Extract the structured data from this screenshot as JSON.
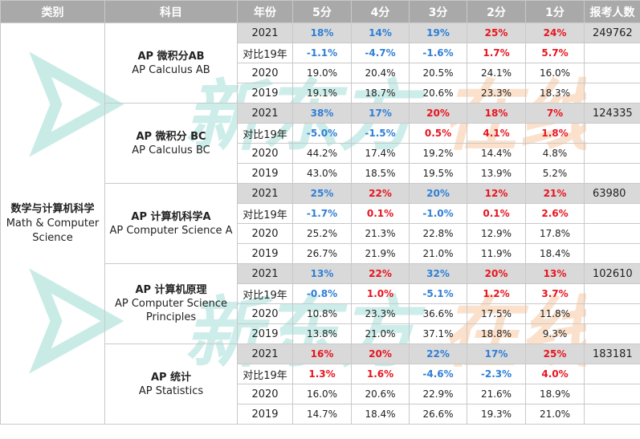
{
  "headers": [
    "类别",
    "科目",
    "年份",
    "5分",
    "4分",
    "3分",
    "2分",
    "1分",
    "报考人数"
  ],
  "category": {
    "zh": "数学与计算机科学",
    "en": "Math & Computer Science"
  },
  "subjects": [
    {
      "zh": "AP 微积分AB",
      "en": "AP Calculus AB",
      "rows": [
        {
          "year": "2021",
          "vals": [
            "18%",
            "14%",
            "19%",
            "25%",
            "24%"
          ],
          "colors": [
            "blue",
            "blue",
            "blue",
            "red",
            "red"
          ],
          "count": "249762"
        },
        {
          "year": "对比19年",
          "vals": [
            "-1.1%",
            "-4.7%",
            "-1.6%",
            "1.7%",
            "5.7%"
          ],
          "colors": [
            "blue",
            "blue",
            "blue",
            "red",
            "red"
          ],
          "count": ""
        },
        {
          "year": "2020",
          "vals": [
            "19.0%",
            "20.4%",
            "20.5%",
            "24.1%",
            "16.0%"
          ],
          "colors": [
            "",
            "",
            "",
            "",
            ""
          ],
          "count": ""
        },
        {
          "year": "2019",
          "vals": [
            "19.1%",
            "18.7%",
            "20.6%",
            "23.3%",
            "18.3%"
          ],
          "colors": [
            "",
            "",
            "",
            "",
            ""
          ],
          "count": ""
        }
      ]
    },
    {
      "zh": "AP 微积分 BC",
      "en": "AP Calculus BC",
      "rows": [
        {
          "year": "2021",
          "vals": [
            "38%",
            "17%",
            "20%",
            "18%",
            "7%"
          ],
          "colors": [
            "blue",
            "blue",
            "red",
            "red",
            "red"
          ],
          "count": "124335"
        },
        {
          "year": "对比19年",
          "vals": [
            "-5.0%",
            "-1.5%",
            "0.5%",
            "4.1%",
            "1.8%"
          ],
          "colors": [
            "blue",
            "blue",
            "red",
            "red",
            "red"
          ],
          "count": ""
        },
        {
          "year": "2020",
          "vals": [
            "44.2%",
            "17.4%",
            "19.2%",
            "14.4%",
            "4.8%"
          ],
          "colors": [
            "",
            "",
            "",
            "",
            ""
          ],
          "count": ""
        },
        {
          "year": "2019",
          "vals": [
            "43.0%",
            "18.5%",
            "19.5%",
            "13.9%",
            "5.2%"
          ],
          "colors": [
            "",
            "",
            "",
            "",
            ""
          ],
          "count": ""
        }
      ]
    },
    {
      "zh": "AP 计算机科学A",
      "en": "AP Computer Science A",
      "rows": [
        {
          "year": "2021",
          "vals": [
            "25%",
            "22%",
            "20%",
            "12%",
            "21%"
          ],
          "colors": [
            "blue",
            "red",
            "blue",
            "red",
            "red"
          ],
          "count": "63980"
        },
        {
          "year": "对比19年",
          "vals": [
            "-1.7%",
            "0.1%",
            "-1.0%",
            "0.1%",
            "2.6%"
          ],
          "colors": [
            "blue",
            "red",
            "blue",
            "red",
            "red"
          ],
          "count": ""
        },
        {
          "year": "2020",
          "vals": [
            "25.2%",
            "21.3%",
            "22.8%",
            "12.9%",
            "17.8%"
          ],
          "colors": [
            "",
            "",
            "",
            "",
            ""
          ],
          "count": ""
        },
        {
          "year": "2019",
          "vals": [
            "26.7%",
            "21.9%",
            "21.0%",
            "11.9%",
            "18.4%"
          ],
          "colors": [
            "",
            "",
            "",
            "",
            ""
          ],
          "count": ""
        }
      ]
    },
    {
      "zh": "AP 计算机原理",
      "en": "AP Computer Science Principles",
      "rows": [
        {
          "year": "2021",
          "vals": [
            "13%",
            "22%",
            "32%",
            "20%",
            "13%"
          ],
          "colors": [
            "blue",
            "red",
            "blue",
            "red",
            "red"
          ],
          "count": "102610"
        },
        {
          "year": "对比19年",
          "vals": [
            "-0.8%",
            "1.0%",
            "-5.1%",
            "1.2%",
            "3.7%"
          ],
          "colors": [
            "blue",
            "red",
            "blue",
            "red",
            "red"
          ],
          "count": ""
        },
        {
          "year": "2020",
          "vals": [
            "10.8%",
            "23.3%",
            "36.6%",
            "17.5%",
            "11.8%"
          ],
          "colors": [
            "",
            "",
            "",
            "",
            ""
          ],
          "count": ""
        },
        {
          "year": "2019",
          "vals": [
            "13.8%",
            "21.0%",
            "37.1%",
            "18.8%",
            "9.3%"
          ],
          "colors": [
            "",
            "",
            "",
            "",
            ""
          ],
          "count": ""
        }
      ]
    },
    {
      "zh": "AP 统计",
      "en": "AP Statistics",
      "rows": [
        {
          "year": "2021",
          "vals": [
            "16%",
            "20%",
            "22%",
            "17%",
            "25%"
          ],
          "colors": [
            "red",
            "red",
            "blue",
            "blue",
            "red"
          ],
          "count": "183181"
        },
        {
          "year": "对比19年",
          "vals": [
            "1.3%",
            "1.6%",
            "-4.6%",
            "-2.3%",
            "4.0%"
          ],
          "colors": [
            "red",
            "red",
            "blue",
            "blue",
            "red"
          ],
          "count": ""
        },
        {
          "year": "2020",
          "vals": [
            "16.0%",
            "20.6%",
            "22.9%",
            "21.6%",
            "18.9%"
          ],
          "colors": [
            "",
            "",
            "",
            "",
            ""
          ],
          "count": ""
        },
        {
          "year": "2019",
          "vals": [
            "14.7%",
            "18.4%",
            "26.6%",
            "19.3%",
            "21.0%"
          ],
          "colors": [
            "",
            "",
            "",
            "",
            ""
          ],
          "count": ""
        }
      ]
    }
  ],
  "watermark": {
    "text_cn": "新东方",
    "text_online": "在线",
    "color_teal": "#7fd3c8",
    "color_orange": "#f7b98a"
  }
}
